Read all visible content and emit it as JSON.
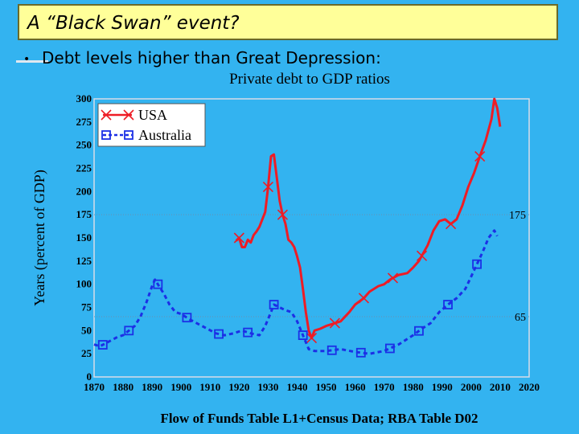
{
  "slide": {
    "title": "A “Black Swan” event?",
    "bullet": "Debt levels higher than Great Depression:"
  },
  "colors": {
    "background": "#33b3f0",
    "title_fill": "#ffff99",
    "usa": "#ee1c25",
    "australia": "#1c2fe6"
  },
  "chart_data": {
    "type": "line",
    "title": "Private debt to GDP ratios",
    "xlabel": "Flow of Funds Table L1+Census Data; RBA Table D02",
    "ylabel": "Years (percent of GDP)",
    "xlim": [
      1870,
      2020
    ],
    "ylim": [
      0,
      300
    ],
    "x_ticks": [
      1870,
      1880,
      1890,
      1900,
      1910,
      1920,
      1930,
      1940,
      1950,
      1960,
      1970,
      1980,
      1990,
      2000,
      2010,
      2020
    ],
    "y_ticks": [
      0,
      25,
      50,
      75,
      100,
      125,
      150,
      175,
      200,
      225,
      250,
      275,
      300
    ],
    "grid": false,
    "legend": "top-left",
    "reference_lines": [
      {
        "y": 175,
        "label": "175"
      },
      {
        "y": 65,
        "label": "65"
      }
    ],
    "series": [
      {
        "name": "USA",
        "color": "#ee1c25",
        "marker": "x",
        "x": [
          1919,
          1920,
          1921,
          1922,
          1923,
          1924,
          1925,
          1926,
          1927,
          1928,
          1929,
          1930,
          1931,
          1932,
          1933,
          1934,
          1935,
          1936,
          1937,
          1938,
          1939,
          1940,
          1941,
          1942,
          1943,
          1944,
          1945,
          1946,
          1948,
          1950,
          1952,
          1955,
          1958,
          1960,
          1963,
          1965,
          1968,
          1970,
          1972,
          1975,
          1978,
          1980,
          1982,
          1985,
          1987,
          1989,
          1991,
          1993,
          1995,
          1997,
          1999,
          2001,
          2003,
          2005,
          2007,
          2008,
          2009,
          2010
        ],
        "y": [
          147,
          150,
          140,
          140,
          148,
          145,
          153,
          157,
          162,
          170,
          178,
          205,
          238,
          240,
          215,
          190,
          175,
          165,
          148,
          145,
          140,
          130,
          118,
          95,
          70,
          50,
          42,
          50,
          52,
          55,
          57,
          60,
          70,
          78,
          85,
          92,
          98,
          100,
          105,
          110,
          112,
          118,
          125,
          142,
          158,
          168,
          170,
          165,
          170,
          185,
          205,
          220,
          238,
          255,
          278,
          300,
          290,
          270
        ],
        "marker_x": [
          1920,
          1930,
          1935,
          1945,
          1953,
          1963,
          1973,
          1983,
          1993,
          2003
        ]
      },
      {
        "name": "Australia",
        "color": "#1c2fe6",
        "marker": "square",
        "x": [
          1870,
          1872,
          1875,
          1878,
          1880,
          1882,
          1884,
          1886,
          1888,
          1890,
          1891,
          1892,
          1894,
          1896,
          1898,
          1900,
          1903,
          1906,
          1909,
          1912,
          1915,
          1918,
          1921,
          1924,
          1927,
          1929,
          1931,
          1932,
          1934,
          1936,
          1938,
          1940,
          1942,
          1944,
          1946,
          1950,
          1955,
          1960,
          1965,
          1970,
          1975,
          1980,
          1983,
          1986,
          1989,
          1992,
          1995,
          1998,
          2001,
          2004,
          2006,
          2008,
          2009
        ],
        "y": [
          35,
          33,
          38,
          43,
          45,
          50,
          55,
          65,
          80,
          98,
          105,
          100,
          90,
          78,
          70,
          68,
          62,
          57,
          52,
          47,
          45,
          47,
          50,
          47,
          45,
          55,
          70,
          78,
          75,
          72,
          70,
          60,
          45,
          30,
          28,
          28,
          30,
          27,
          25,
          28,
          35,
          45,
          52,
          58,
          70,
          78,
          85,
          95,
          115,
          135,
          150,
          158,
          152
        ],
        "marker_x": [
          1873,
          1882,
          1892,
          1902,
          1913,
          1923,
          1932,
          1942,
          1952,
          1962,
          1972,
          1982,
          1992,
          2002
        ]
      }
    ]
  }
}
